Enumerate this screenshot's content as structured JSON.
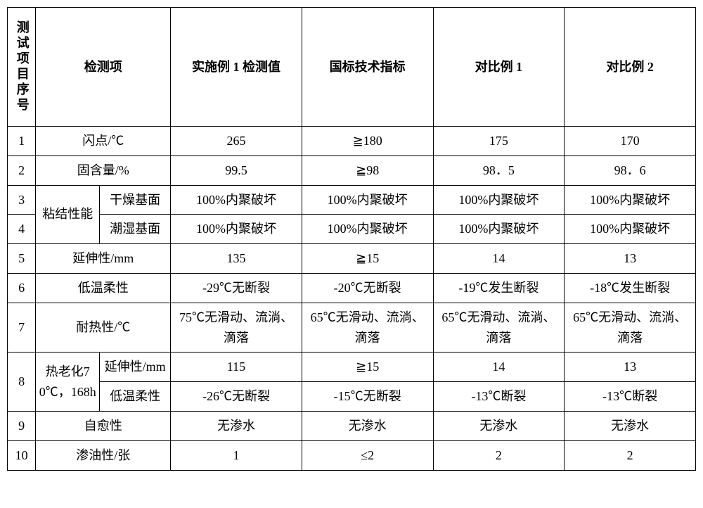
{
  "headers": {
    "num": "测试项目序号",
    "detect": "检测项",
    "col1": "实施例 1 检测值",
    "col2": "国标技术指标",
    "col3": "对比例 1",
    "col4": "对比例 2"
  },
  "rows": {
    "r1": {
      "n": "1",
      "d": "闪点/℃",
      "v1": "265",
      "v2": "≧180",
      "v3": "175",
      "v4": "170"
    },
    "r2": {
      "n": "2",
      "d": "固含量/%",
      "v1": "99.5",
      "v2": "≧98",
      "v3": "98．5",
      "v4": "98．6"
    },
    "r3": {
      "n": "3",
      "group": "粘结性能",
      "sub": "干燥基面",
      "v1": "100%内聚破坏",
      "v2": "100%内聚破坏",
      "v3": "100%内聚破坏",
      "v4": "100%内聚破坏"
    },
    "r4": {
      "n": "4",
      "sub": "潮湿基面",
      "v1": "100%内聚破坏",
      "v2": "100%内聚破坏",
      "v3": "100%内聚破坏",
      "v4": "100%内聚破坏"
    },
    "r5": {
      "n": "5",
      "d": "延伸性/mm",
      "v1": "135",
      "v2": "≧15",
      "v3": "14",
      "v4": "13"
    },
    "r6": {
      "n": "6",
      "d": "低温柔性",
      "v1": "-29℃无断裂",
      "v2": "-20℃无断裂",
      "v3": "-19℃发生断裂",
      "v4": "-18℃发生断裂"
    },
    "r7": {
      "n": "7",
      "d": "耐热性/℃",
      "v1": "75℃无滑动、流淌、滴落",
      "v2": "65℃无滑动、流淌、滴落",
      "v3": "65℃无滑动、流淌、滴落",
      "v4": "65℃无滑动、流淌、滴落"
    },
    "r8a": {
      "n": "8",
      "group": "热老化70℃，168h",
      "sub": "延伸性/mm",
      "v1": "115",
      "v2": "≧15",
      "v3": "14",
      "v4": "13"
    },
    "r8b": {
      "sub": "低温柔性",
      "v1": "-26℃无断裂",
      "v2": "-15℃无断裂",
      "v3": "-13℃断裂",
      "v4": "-13℃断裂"
    },
    "r9": {
      "n": "9",
      "d": "自愈性",
      "v1": "无渗水",
      "v2": "无渗水",
      "v3": "无渗水",
      "v4": "无渗水"
    },
    "r10": {
      "n": "10",
      "d": "渗油性/张",
      "v1": "1",
      "v2": "≤2",
      "v3": "2",
      "v4": "2"
    }
  }
}
